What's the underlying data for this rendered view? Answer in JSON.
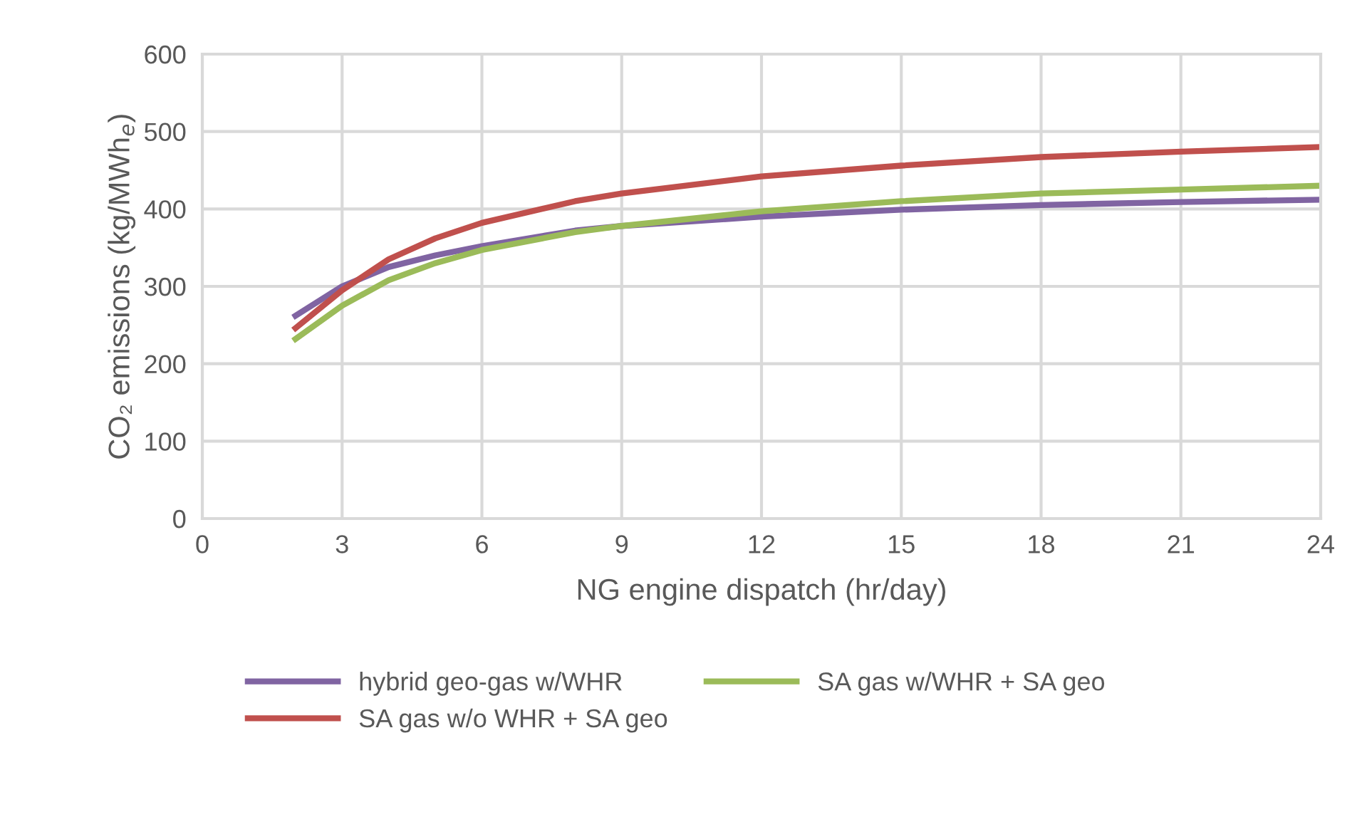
{
  "chart_data": {
    "type": "line",
    "xlabel": "NG engine dispatch (hr/day)",
    "ylabel": "CO₂ emissions (kg/MWh$_{e}$)",
    "x": [
      2,
      3,
      4,
      5,
      6,
      8,
      9,
      12,
      15,
      18,
      21,
      24
    ],
    "series": [
      {
        "name": "hybrid geo-gas w/WHR",
        "color": "#8064a2",
        "values": [
          262,
          300,
          325,
          340,
          352,
          372,
          378,
          390,
          399,
          405,
          409,
          412
        ]
      },
      {
        "name": "SA gas w/o WHR + SA geo",
        "color": "#c0504d",
        "values": [
          246,
          295,
          335,
          362,
          382,
          410,
          420,
          442,
          456,
          467,
          474,
          480
        ]
      },
      {
        "name": "SA gas w/WHR + SA geo",
        "color": "#9bbb59",
        "values": [
          232,
          275,
          308,
          330,
          347,
          370,
          378,
          397,
          410,
          420,
          425,
          430
        ]
      }
    ],
    "xlim": [
      0,
      24
    ],
    "xticks": [
      0,
      3,
      6,
      9,
      12,
      15,
      18,
      21,
      24
    ],
    "ylim": [
      0,
      600
    ],
    "yticks": [
      0,
      100,
      200,
      300,
      400,
      500,
      600
    ],
    "grid": true,
    "legend": "bottom",
    "marker": "none",
    "line_style": "solid"
  }
}
